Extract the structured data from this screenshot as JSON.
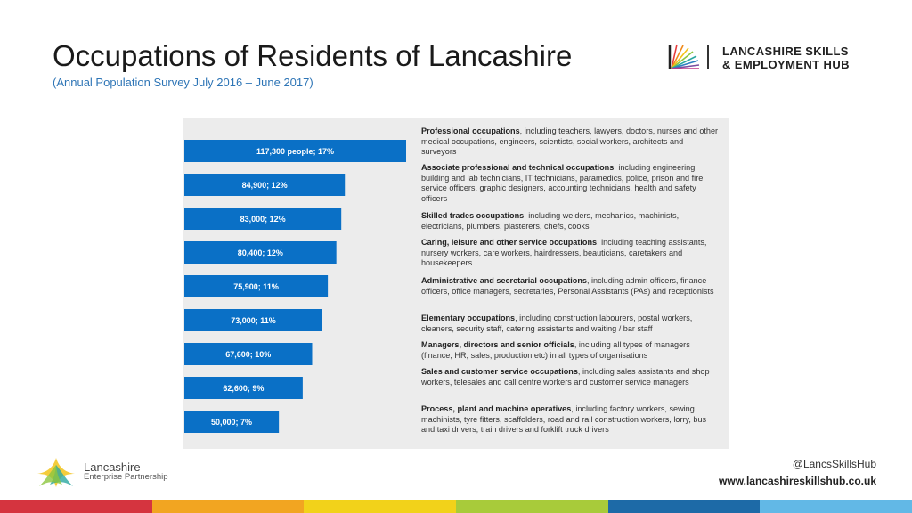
{
  "header": {
    "title": "Occupations of Residents of Lancashire",
    "subtitle": "(Annual Population Survey July 2016 – June 2017)"
  },
  "hub_logo": {
    "line1": "LANCASHIRE SKILLS",
    "line2": "& EMPLOYMENT HUB",
    "icon": "hub-starburst-icon"
  },
  "chart_data": {
    "type": "bar",
    "orientation": "horizontal",
    "title": "",
    "xlabel": "",
    "ylabel": "",
    "bar_color": "#0a70c6",
    "xlim": [
      0,
      117300
    ],
    "categories": [
      "Professional occupations",
      "Associate professional and technical occupations",
      "Skilled trades occupations",
      "Caring, leisure and other service occupations",
      "Administrative and secretarial occupations",
      "Elementary occupations",
      "Managers, directors and senior officials",
      "Sales and customer service occupations",
      "Process, plant and machine operatives"
    ],
    "values": [
      117300,
      84900,
      83000,
      80400,
      75900,
      73000,
      67600,
      62600,
      50000
    ],
    "data_labels": [
      "117,300 people; 17%",
      "84,900; 12%",
      "83,000; 12%",
      "80,400; 12%",
      "75,900; 11%",
      "73,000; 11%",
      "67,600; 10%",
      "62,600; 9%",
      "50,000; 7%"
    ]
  },
  "descriptions": [
    {
      "bold": "Professional occupations",
      "text": ", including teachers, lawyers, doctors, nurses and other medical occupations, engineers, scientists, social workers, architects and surveyors"
    },
    {
      "bold": "Associate professional and technical occupations",
      "text": ", including engineering, building and lab technicians, IT technicians, paramedics, police, prison and fire service officers, graphic designers, accounting technicians, health and safety officers"
    },
    {
      "bold": "Skilled trades occupations",
      "text": ", including welders, mechanics, machinists, electricians, plumbers, plasterers, chefs, cooks"
    },
    {
      "bold": "Caring, leisure and other service occupations",
      "text": ", including teaching assistants, nursery workers, care workers, hairdressers, beauticians, caretakers and housekeepers"
    },
    {
      "bold": "Administrative and secretarial occupations",
      "text": ", including admin officers, finance officers, office managers, secretaries, Personal Assistants (PAs) and receptionists"
    },
    {
      "bold": "Elementary occupations",
      "text": ", including construction labourers, postal workers, cleaners, security staff, catering assistants and waiting / bar staff"
    },
    {
      "bold": "Managers, directors and senior officials",
      "text": ", including all types of managers (finance, HR, sales, production etc) in all types of organisations"
    },
    {
      "bold": "Sales and customer service occupations",
      "text": ", including sales assistants and shop workers, telesales and call centre workers and customer service managers"
    },
    {
      "bold": "Process, plant and machine operatives",
      "text": ", including factory workers, sewing machinists, tyre fitters, scaffolders, road and rail construction workers, lorry, bus and taxi drivers, train drivers and forklift truck drivers"
    }
  ],
  "footer": {
    "lep_name": "Lancashire",
    "lep_sub": "Enterprise Partnership",
    "lep_icon": "lep-tristar-icon",
    "twitter": "@LancsSkillsHub",
    "website": "www.lancashireskillshub.co.uk",
    "bar_colors": [
      "#d5343f",
      "#f2a521",
      "#f2d21a",
      "#a8cb3a",
      "#1d6aa7",
      "#62b8e6"
    ]
  }
}
